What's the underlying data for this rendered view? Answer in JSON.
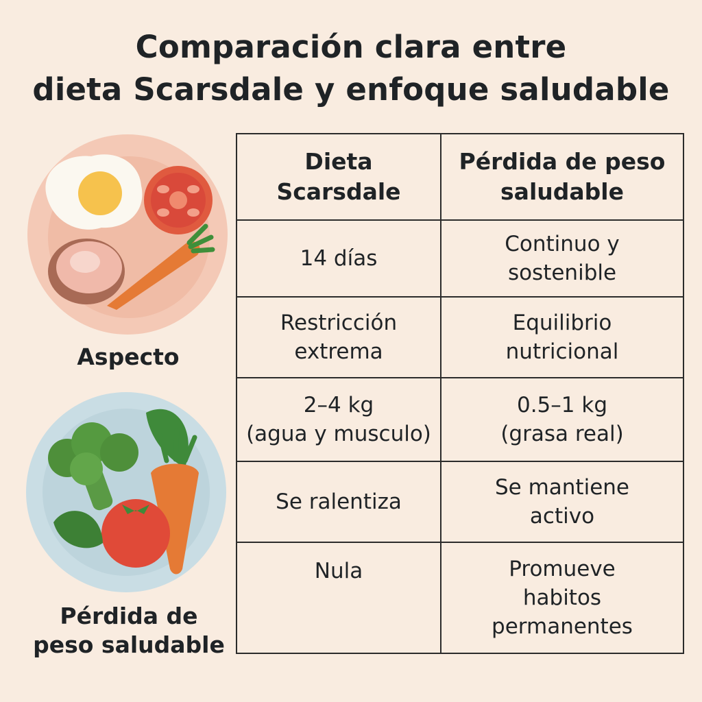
{
  "title": {
    "line1": "Comparación clara entre",
    "line2": "dieta Scarsdale y enfoque saludable"
  },
  "side": {
    "label_top": "Aspecto",
    "label_bottom_line1": "Pérdida de",
    "label_bottom_line2": "peso saludable",
    "plate_top_icon": "breakfast-plate-icon",
    "plate_bottom_icon": "vegetable-plate-icon"
  },
  "table": {
    "headers": [
      "Dieta\nScarsdale",
      "Pérdida de peso\nsaludable"
    ],
    "rows": [
      [
        "14 días",
        "Continuo y\nsostenible"
      ],
      [
        "Restricción\nextrema",
        "Equilibrio\nnutricional"
      ],
      [
        "2–4 kg\n(agua y musculo)",
        "0.5–1 kg\n(grasa real)"
      ],
      [
        "Se ralentiza",
        "Se mantiene\nactivo"
      ],
      [
        "Nula",
        "Promueve\nhabitos\npermanentes"
      ]
    ]
  },
  "colors": {
    "background": "#f9ece0",
    "border": "#2b2b2b",
    "plate_top": "#f4c9b6",
    "plate_bottom": "#c9dde4"
  }
}
